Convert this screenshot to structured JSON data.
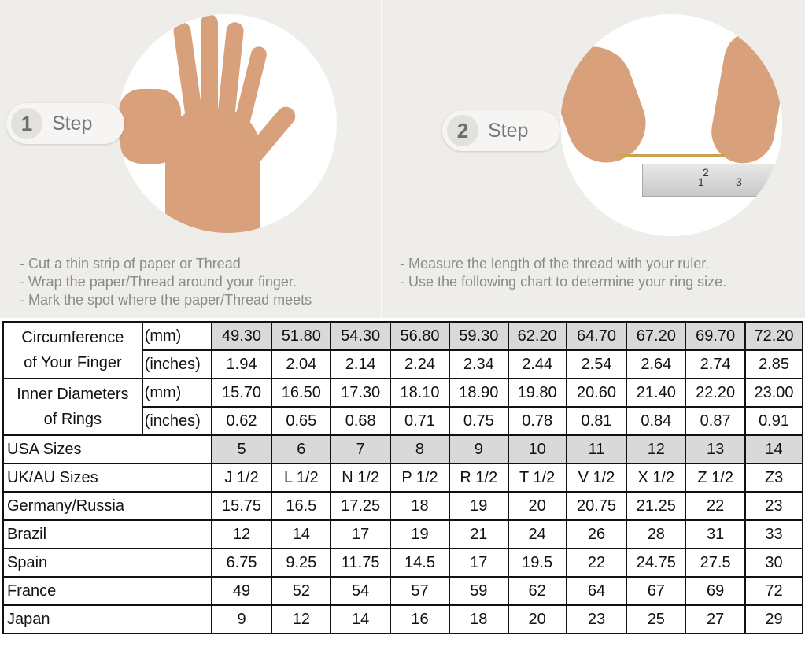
{
  "steps": [
    {
      "number": "1",
      "label": "Step",
      "instructions": [
        "- Cut a thin strip of paper or Thread",
        "- Wrap the paper/Thread around your finger.",
        "- Mark the spot where the paper/Thread meets"
      ]
    },
    {
      "number": "2",
      "label": "Step",
      "instructions": [
        "- Measure the length of the thread with your ruler.",
        "- Use the following chart to determine your ring size."
      ]
    }
  ],
  "ruler_marks": [
    "1",
    "2",
    "3"
  ],
  "table": {
    "circumference": {
      "label_line1": "Circumference",
      "label_line2": "of Your Finger",
      "mm_unit": "(mm)",
      "in_unit": "(inches)",
      "mm": [
        "49.30",
        "51.80",
        "54.30",
        "56.80",
        "59.30",
        "62.20",
        "64.70",
        "67.20",
        "69.70",
        "72.20"
      ],
      "inches": [
        "1.94",
        "2.04",
        "2.14",
        "2.24",
        "2.34",
        "2.44",
        "2.54",
        "2.64",
        "2.74",
        "2.85"
      ]
    },
    "diameter": {
      "label_line1": "Inner Diameters",
      "label_line2": "of Rings",
      "mm_unit": "(mm)",
      "in_unit": "(inches)",
      "mm": [
        "15.70",
        "16.50",
        "17.30",
        "18.10",
        "18.90",
        "19.80",
        "20.60",
        "21.40",
        "22.20",
        "23.00"
      ],
      "inches": [
        "0.62",
        "0.65",
        "0.68",
        "0.71",
        "0.75",
        "0.78",
        "0.81",
        "0.84",
        "0.87",
        "0.91"
      ]
    },
    "rows": [
      {
        "label": "USA Sizes",
        "values": [
          "5",
          "6",
          "7",
          "8",
          "9",
          "10",
          "11",
          "12",
          "13",
          "14"
        ]
      },
      {
        "label": "UK/AU Sizes",
        "values": [
          "J 1/2",
          "L 1/2",
          "N 1/2",
          "P 1/2",
          "R 1/2",
          "T 1/2",
          "V 1/2",
          "X 1/2",
          "Z 1/2",
          "Z3"
        ]
      },
      {
        "label": "Germany/Russia",
        "values": [
          "15.75",
          "16.5",
          "17.25",
          "18",
          "19",
          "20",
          "20.75",
          "21.25",
          "22",
          "23"
        ]
      },
      {
        "label": "Brazil",
        "values": [
          "12",
          "14",
          "17",
          "19",
          "21",
          "24",
          "26",
          "28",
          "31",
          "33"
        ]
      },
      {
        "label": "Spain",
        "values": [
          "6.75",
          "9.25",
          "11.75",
          "14.5",
          "17",
          "19.5",
          "22",
          "24.75",
          "27.5",
          "30"
        ]
      },
      {
        "label": "France",
        "values": [
          "49",
          "52",
          "54",
          "57",
          "59",
          "62",
          "64",
          "67",
          "69",
          "72"
        ]
      },
      {
        "label": "Japan",
        "values": [
          "9",
          "12",
          "14",
          "16",
          "18",
          "20",
          "23",
          "25",
          "27",
          "29"
        ]
      }
    ]
  }
}
